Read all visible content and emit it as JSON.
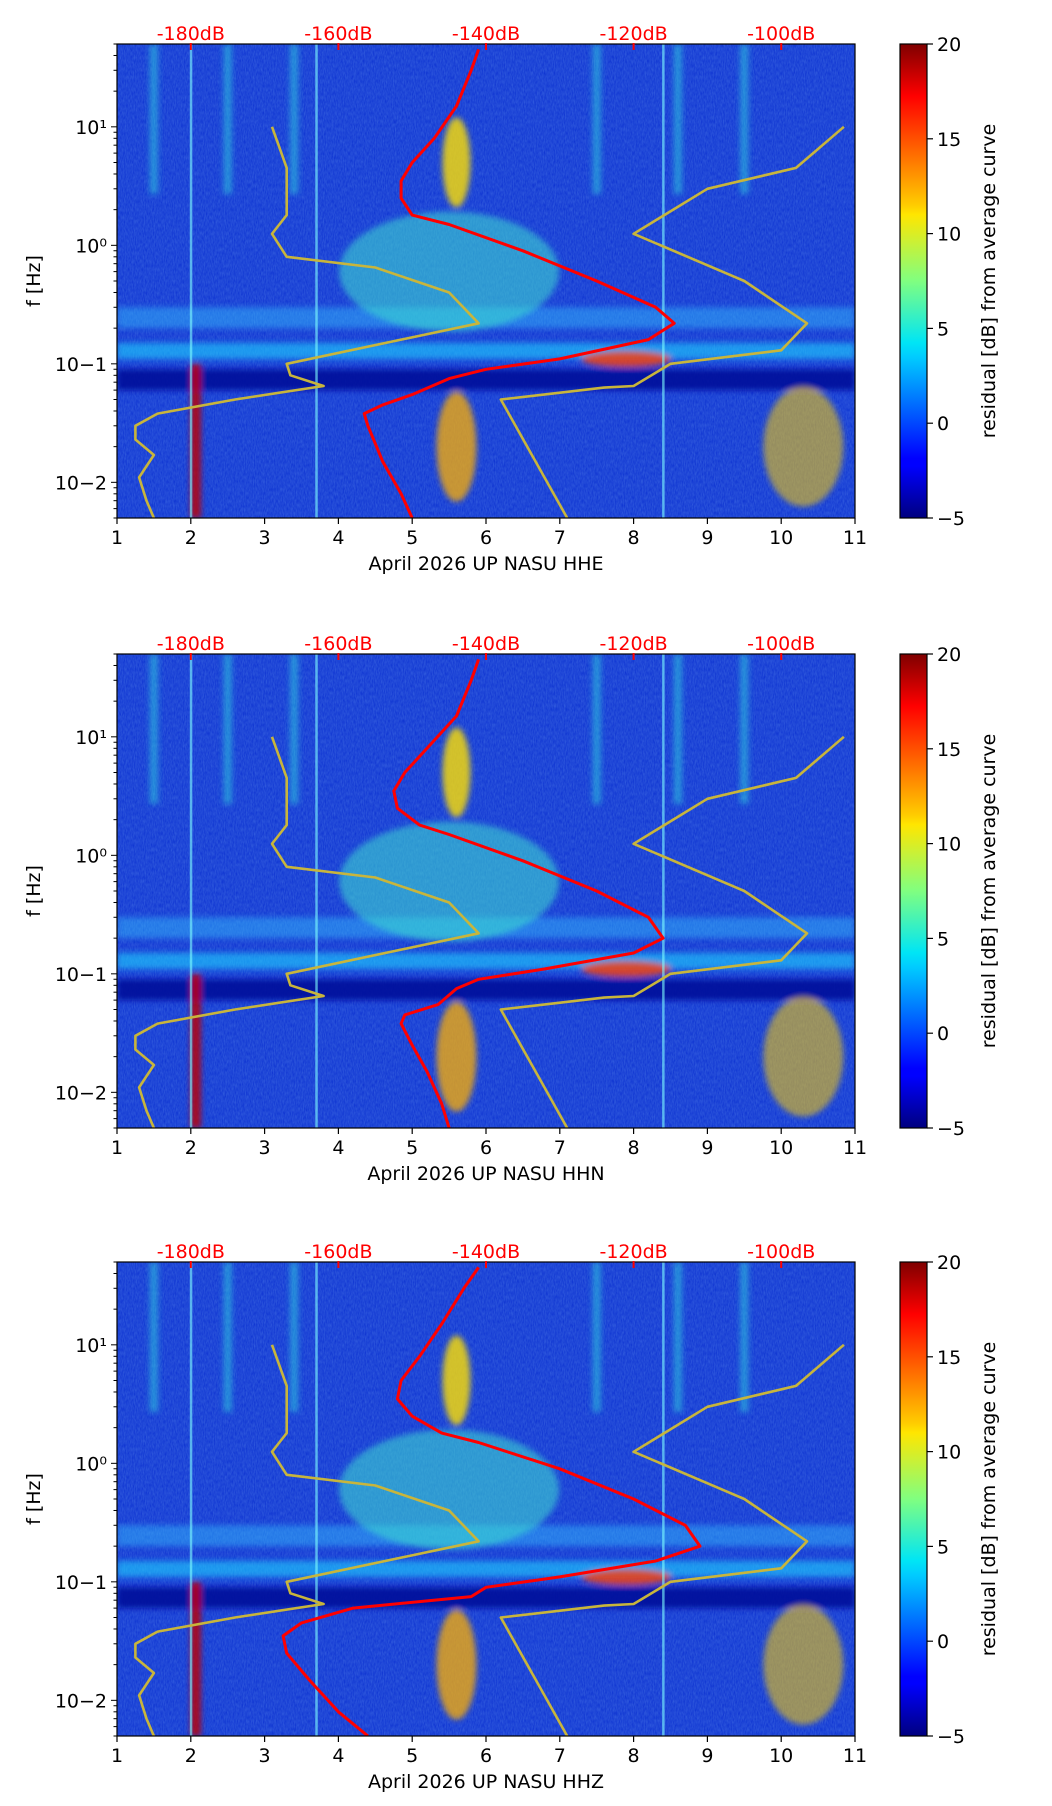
{
  "chart_data": [
    {
      "type": "heatmap",
      "title": "",
      "xlabel": "April 2026 UP NASU  HHE",
      "ylabel": "f [Hz]",
      "x_ticks": [
        1,
        2,
        3,
        4,
        5,
        6,
        7,
        8,
        9,
        10,
        11
      ],
      "xlim": [
        1,
        11
      ],
      "ylim": [
        0.005,
        50
      ],
      "yscale": "log",
      "y_tick_labels": [
        "10−2",
        "10−1",
        "10⁰",
        "10¹"
      ],
      "top_axis_labels": [
        "-180dB",
        "-160dB",
        "-140dB",
        "-120dB",
        "-100dB"
      ],
      "top_axis_positions": [
        2,
        4,
        6,
        8,
        10
      ],
      "colorbar": {
        "label": "residual [dB] from average curve",
        "range": [
          -5,
          20
        ],
        "ticks": [
          -5,
          0,
          5,
          10,
          15,
          20
        ]
      },
      "series": [
        {
          "name": "average PSD (red)",
          "color": "#ff0000",
          "x": [
            5.9,
            5.8,
            5.6,
            5.3,
            5.0,
            4.85,
            4.85,
            5.0,
            5.5,
            6.5,
            7.5,
            8.3,
            8.55,
            8.2,
            7.0,
            6.0,
            5.5,
            5.0,
            4.6,
            4.35,
            4.4,
            4.6,
            4.85,
            5.0
          ],
          "y": [
            45,
            30,
            15,
            8,
            5,
            3.5,
            2.5,
            1.8,
            1.5,
            0.9,
            0.5,
            0.3,
            0.22,
            0.16,
            0.11,
            0.09,
            0.075,
            0.055,
            0.045,
            0.038,
            0.03,
            0.015,
            0.008,
            0.005
          ]
        },
        {
          "name": "low noise model (yellow)",
          "color": "#c8b53c",
          "x": [
            1.5,
            1.4,
            1.3,
            1.5,
            1.25,
            1.25,
            1.55,
            2.6,
            3.8,
            3.35,
            3.3,
            5.9,
            5.5,
            4.5,
            3.3,
            3.1,
            3.3,
            3.3,
            3.1
          ],
          "y": [
            0.005,
            0.007,
            0.011,
            0.017,
            0.023,
            0.03,
            0.038,
            0.05,
            0.065,
            0.08,
            0.1,
            0.22,
            0.4,
            0.65,
            0.8,
            1.25,
            1.8,
            4.5,
            10
          ]
        },
        {
          "name": "high noise model (yellow)",
          "color": "#c8b53c",
          "x": [
            7.1,
            6.2,
            7.6,
            8.0,
            8.5,
            10.0,
            10.35,
            9.5,
            8.0,
            9.0,
            10.2,
            10.85
          ],
          "y": [
            0.005,
            0.05,
            0.063,
            0.065,
            0.1,
            0.13,
            0.22,
            0.5,
            1.25,
            3.0,
            4.5,
            10
          ]
        }
      ]
    },
    {
      "type": "heatmap",
      "title": "",
      "xlabel": "April 2026 UP NASU  HHN",
      "ylabel": "f [Hz]",
      "x_ticks": [
        1,
        2,
        3,
        4,
        5,
        6,
        7,
        8,
        9,
        10,
        11
      ],
      "xlim": [
        1,
        11
      ],
      "ylim": [
        0.005,
        50
      ],
      "yscale": "log",
      "y_tick_labels": [
        "10−2",
        "10−1",
        "10⁰",
        "10¹"
      ],
      "top_axis_labels": [
        "-180dB",
        "-160dB",
        "-140dB",
        "-120dB",
        "-100dB"
      ],
      "top_axis_positions": [
        2,
        4,
        6,
        8,
        10
      ],
      "colorbar": {
        "label": "residual [dB] from average curve",
        "range": [
          -5,
          20
        ],
        "ticks": [
          -5,
          0,
          5,
          10,
          15,
          20
        ]
      },
      "series": [
        {
          "name": "average PSD (red)",
          "color": "#ff0000",
          "x": [
            5.9,
            5.8,
            5.6,
            5.2,
            4.9,
            4.75,
            4.8,
            5.1,
            5.5,
            6.5,
            7.5,
            8.2,
            8.4,
            8.0,
            6.8,
            5.9,
            5.6,
            5.35,
            4.9,
            4.85,
            5.0,
            5.2,
            5.4,
            5.5
          ],
          "y": [
            45,
            30,
            15,
            8,
            5,
            3.5,
            2.5,
            1.8,
            1.5,
            0.9,
            0.5,
            0.3,
            0.2,
            0.15,
            0.11,
            0.09,
            0.075,
            0.055,
            0.045,
            0.038,
            0.025,
            0.015,
            0.008,
            0.005
          ]
        },
        {
          "name": "low noise model (yellow)",
          "color": "#c8b53c",
          "x": [
            1.5,
            1.4,
            1.3,
            1.5,
            1.25,
            1.25,
            1.55,
            2.6,
            3.8,
            3.35,
            3.3,
            5.9,
            5.5,
            4.5,
            3.3,
            3.1,
            3.3,
            3.3,
            3.1
          ],
          "y": [
            0.005,
            0.007,
            0.011,
            0.017,
            0.023,
            0.03,
            0.038,
            0.05,
            0.065,
            0.08,
            0.1,
            0.22,
            0.4,
            0.65,
            0.8,
            1.25,
            1.8,
            4.5,
            10
          ]
        },
        {
          "name": "high noise model (yellow)",
          "color": "#c8b53c",
          "x": [
            7.1,
            6.2,
            7.6,
            8.0,
            8.5,
            10.0,
            10.35,
            9.5,
            8.0,
            9.0,
            10.2,
            10.85
          ],
          "y": [
            0.005,
            0.05,
            0.063,
            0.065,
            0.1,
            0.13,
            0.22,
            0.5,
            1.25,
            3.0,
            4.5,
            10
          ]
        }
      ]
    },
    {
      "type": "heatmap",
      "title": "",
      "xlabel": "April 2026 UP NASU  HHZ",
      "ylabel": "f [Hz]",
      "x_ticks": [
        1,
        2,
        3,
        4,
        5,
        6,
        7,
        8,
        9,
        10,
        11
      ],
      "xlim": [
        1,
        11
      ],
      "ylim": [
        0.005,
        50
      ],
      "yscale": "log",
      "y_tick_labels": [
        "10−2",
        "10−1",
        "10⁰",
        "10¹"
      ],
      "top_axis_labels": [
        "-180dB",
        "-160dB",
        "-140dB",
        "-120dB",
        "-100dB"
      ],
      "top_axis_positions": [
        2,
        4,
        6,
        8,
        10
      ],
      "colorbar": {
        "label": "residual [dB] from average curve",
        "range": [
          -5,
          20
        ],
        "ticks": [
          -5,
          0,
          5,
          10,
          15,
          20
        ]
      },
      "series": [
        {
          "name": "average PSD (red)",
          "color": "#ff0000",
          "x": [
            5.9,
            5.7,
            5.4,
            5.1,
            4.85,
            4.8,
            5.0,
            5.4,
            5.9,
            7.0,
            8.0,
            8.7,
            8.9,
            8.3,
            7.0,
            6.0,
            5.8,
            4.2,
            3.5,
            3.25,
            3.3,
            3.6,
            4.0,
            4.4
          ],
          "y": [
            45,
            30,
            15,
            8,
            5,
            3.5,
            2.5,
            1.8,
            1.5,
            0.9,
            0.5,
            0.3,
            0.2,
            0.15,
            0.11,
            0.09,
            0.075,
            0.06,
            0.045,
            0.035,
            0.025,
            0.015,
            0.008,
            0.005
          ]
        },
        {
          "name": "low noise model (yellow)",
          "color": "#c8b53c",
          "x": [
            1.5,
            1.4,
            1.3,
            1.5,
            1.25,
            1.25,
            1.55,
            2.6,
            3.8,
            3.35,
            3.3,
            5.9,
            5.5,
            4.5,
            3.3,
            3.1,
            3.3,
            3.3,
            3.1
          ],
          "y": [
            0.005,
            0.007,
            0.011,
            0.017,
            0.023,
            0.03,
            0.038,
            0.05,
            0.065,
            0.08,
            0.1,
            0.22,
            0.4,
            0.65,
            0.8,
            1.25,
            1.8,
            4.5,
            10
          ]
        },
        {
          "name": "high noise model (yellow)",
          "color": "#c8b53c",
          "x": [
            7.1,
            6.2,
            7.6,
            8.0,
            8.5,
            10.0,
            10.35,
            9.5,
            8.0,
            9.0,
            10.2,
            10.85
          ],
          "y": [
            0.005,
            0.05,
            0.063,
            0.065,
            0.1,
            0.13,
            0.22,
            0.5,
            1.25,
            3.0,
            4.5,
            10
          ]
        }
      ]
    }
  ]
}
